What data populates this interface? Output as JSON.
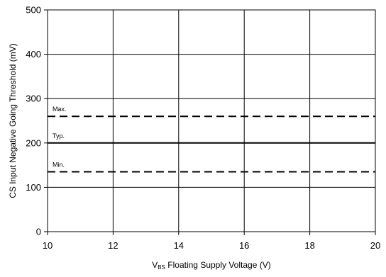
{
  "chart_data": {
    "type": "line",
    "title": "",
    "xlabel_prefix": "V",
    "xlabel_subscript": "BS",
    "xlabel_rest": " Floating Supply Voltage (V)",
    "ylabel": "CS Input Negative Going Threshold (mV)",
    "xlim": [
      10,
      20
    ],
    "ylim": [
      0,
      500
    ],
    "xticks": [
      10,
      12,
      14,
      16,
      18,
      20
    ],
    "yticks": [
      0,
      100,
      200,
      300,
      400,
      500
    ],
    "grid": true,
    "series": [
      {
        "name": "Max.",
        "x": [
          10,
          20
        ],
        "y": [
          260,
          260
        ],
        "style": "dashed"
      },
      {
        "name": "Typ.",
        "x": [
          10,
          20
        ],
        "y": [
          200,
          200
        ],
        "style": "solid"
      },
      {
        "name": "Min.",
        "x": [
          10,
          20
        ],
        "y": [
          135,
          135
        ],
        "style": "dashed"
      }
    ]
  }
}
